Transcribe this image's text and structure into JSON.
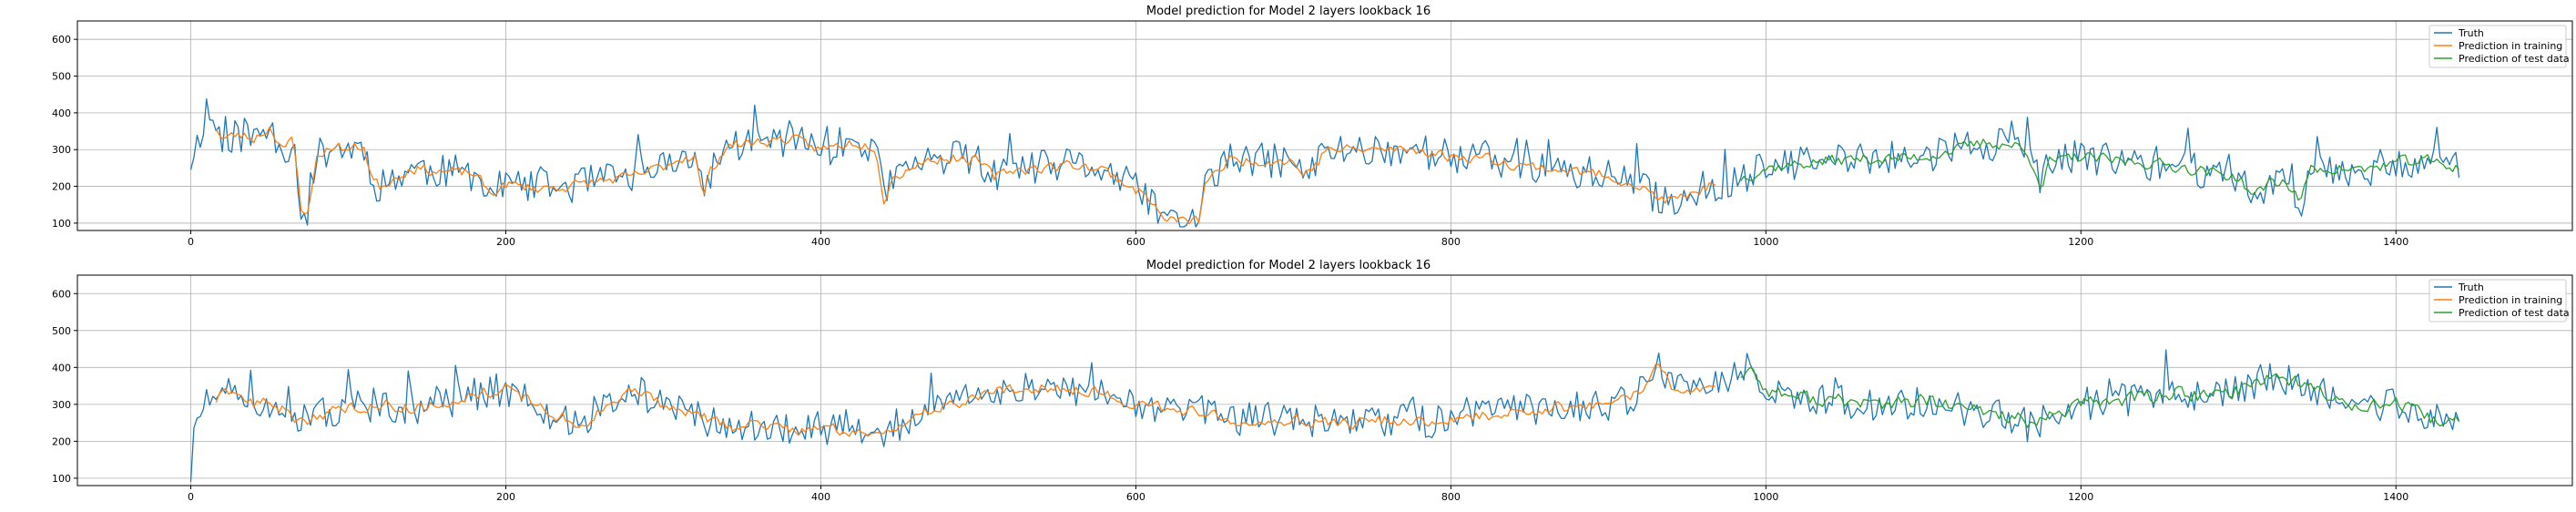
{
  "colors": {
    "truth": "#1f77b4",
    "train": "#ff7f0e",
    "test": "#2ca02c",
    "grid": "#b0b0b0"
  },
  "chart_data": [
    {
      "type": "line",
      "title": "Model prediction for Model 2 layers lookback 16",
      "xlabel": "",
      "ylabel": "",
      "xlim": [
        -72,
        1512
      ],
      "ylim": [
        80,
        650
      ],
      "x_ticks": [
        0,
        200,
        400,
        600,
        800,
        1000,
        1200,
        1400
      ],
      "y_ticks": [
        100,
        200,
        300,
        400,
        500,
        600
      ],
      "grid": true,
      "legend_position": "top-right",
      "series_profile": [
        [
          0,
          270
        ],
        [
          5,
          330
        ],
        [
          10,
          410
        ],
        [
          15,
          370
        ],
        [
          20,
          330
        ],
        [
          30,
          340
        ],
        [
          40,
          330
        ],
        [
          50,
          360
        ],
        [
          60,
          300
        ],
        [
          65,
          330
        ],
        [
          70,
          140
        ],
        [
          75,
          135
        ],
        [
          80,
          280
        ],
        [
          90,
          310
        ],
        [
          100,
          300
        ],
        [
          110,
          310
        ],
        [
          115,
          220
        ],
        [
          120,
          200
        ],
        [
          140,
          250
        ],
        [
          160,
          240
        ],
        [
          180,
          235
        ],
        [
          190,
          180
        ],
        [
          200,
          205
        ],
        [
          220,
          195
        ],
        [
          240,
          200
        ],
        [
          260,
          215
        ],
        [
          280,
          225
        ],
        [
          300,
          255
        ],
        [
          310,
          275
        ],
        [
          320,
          285
        ],
        [
          325,
          170
        ],
        [
          330,
          240
        ],
        [
          340,
          310
        ],
        [
          360,
          320
        ],
        [
          380,
          330
        ],
        [
          400,
          300
        ],
        [
          420,
          320
        ],
        [
          435,
          310
        ],
        [
          440,
          160
        ],
        [
          445,
          220
        ],
        [
          460,
          260
        ],
        [
          480,
          280
        ],
        [
          500,
          270
        ],
        [
          510,
          225
        ],
        [
          520,
          245
        ],
        [
          540,
          250
        ],
        [
          560,
          260
        ],
        [
          580,
          245
        ],
        [
          600,
          190
        ],
        [
          610,
          165
        ],
        [
          615,
          120
        ],
        [
          620,
          110
        ],
        [
          640,
          105
        ],
        [
          645,
          220
        ],
        [
          660,
          270
        ],
        [
          680,
          270
        ],
        [
          700,
          270
        ],
        [
          705,
          230
        ],
        [
          715,
          260
        ],
        [
          720,
          300
        ],
        [
          740,
          300
        ],
        [
          760,
          300
        ],
        [
          780,
          300
        ],
        [
          800,
          280
        ],
        [
          820,
          280
        ],
        [
          840,
          260
        ],
        [
          860,
          250
        ],
        [
          880,
          240
        ],
        [
          900,
          230
        ],
        [
          920,
          200
        ],
        [
          930,
          170
        ],
        [
          940,
          160
        ],
        [
          950,
          175
        ],
        [
          960,
          195
        ],
        [
          980,
          215
        ],
        [
          1000,
          250
        ],
        [
          1020,
          260
        ],
        [
          1040,
          270
        ],
        [
          1060,
          275
        ],
        [
          1080,
          275
        ],
        [
          1100,
          280
        ],
        [
          1120,
          300
        ],
        [
          1140,
          320
        ],
        [
          1160,
          310
        ],
        [
          1170,
          260
        ],
        [
          1175,
          200
        ],
        [
          1180,
          265
        ],
        [
          1200,
          280
        ],
        [
          1220,
          270
        ],
        [
          1240,
          265
        ],
        [
          1260,
          255
        ],
        [
          1280,
          240
        ],
        [
          1300,
          225
        ],
        [
          1310,
          170
        ],
        [
          1320,
          215
        ],
        [
          1330,
          210
        ],
        [
          1340,
          160
        ],
        [
          1345,
          245
        ],
        [
          1360,
          250
        ],
        [
          1380,
          245
        ],
        [
          1400,
          265
        ],
        [
          1420,
          270
        ],
        [
          1440,
          250
        ]
      ],
      "series": [
        {
          "name": "Truth",
          "x_range": [
            0,
            1440
          ],
          "noise": 48,
          "seed": 11
        },
        {
          "name": "Prediction in training",
          "x_range": [
            16,
            968
          ],
          "noise": 20,
          "seed": 23
        },
        {
          "name": "Prediction of test data",
          "x_range": [
            984,
            1440
          ],
          "noise": 22,
          "seed": 37
        }
      ],
      "legend": [
        "Truth",
        "Prediction in training",
        "Prediction of test data"
      ]
    },
    {
      "type": "line",
      "title": "Model prediction for Model 2 layers lookback 16",
      "xlabel": "",
      "ylabel": "",
      "xlim": [
        -72,
        1512
      ],
      "ylim": [
        80,
        650
      ],
      "x_ticks": [
        0,
        200,
        400,
        600,
        800,
        1000,
        1200,
        1400
      ],
      "y_ticks": [
        100,
        200,
        300,
        400,
        500,
        600
      ],
      "grid": true,
      "legend_position": "top-right",
      "series_profile": [
        [
          0,
          105
        ],
        [
          3,
          270
        ],
        [
          10,
          300
        ],
        [
          20,
          320
        ],
        [
          30,
          330
        ],
        [
          40,
          300
        ],
        [
          50,
          310
        ],
        [
          60,
          280
        ],
        [
          70,
          250
        ],
        [
          80,
          270
        ],
        [
          100,
          290
        ],
        [
          120,
          300
        ],
        [
          140,
          290
        ],
        [
          160,
          300
        ],
        [
          180,
          330
        ],
        [
          200,
          340
        ],
        [
          220,
          300
        ],
        [
          230,
          270
        ],
        [
          240,
          260
        ],
        [
          250,
          240
        ],
        [
          260,
          280
        ],
        [
          280,
          340
        ],
        [
          300,
          300
        ],
        [
          320,
          270
        ],
        [
          340,
          240
        ],
        [
          360,
          250
        ],
        [
          380,
          230
        ],
        [
          400,
          240
        ],
        [
          420,
          220
        ],
        [
          440,
          230
        ],
        [
          460,
          260
        ],
        [
          480,
          300
        ],
        [
          500,
          320
        ],
        [
          520,
          340
        ],
        [
          540,
          350
        ],
        [
          560,
          340
        ],
        [
          580,
          330
        ],
        [
          600,
          300
        ],
        [
          620,
          290
        ],
        [
          640,
          280
        ],
        [
          660,
          260
        ],
        [
          680,
          260
        ],
        [
          700,
          260
        ],
        [
          720,
          250
        ],
        [
          740,
          250
        ],
        [
          760,
          260
        ],
        [
          780,
          250
        ],
        [
          800,
          260
        ],
        [
          820,
          270
        ],
        [
          840,
          280
        ],
        [
          860,
          290
        ],
        [
          880,
          290
        ],
        [
          900,
          300
        ],
        [
          920,
          330
        ],
        [
          930,
          420
        ],
        [
          940,
          350
        ],
        [
          960,
          340
        ],
        [
          980,
          370
        ],
        [
          990,
          400
        ],
        [
          1000,
          340
        ],
        [
          1020,
          320
        ],
        [
          1040,
          310
        ],
        [
          1060,
          305
        ],
        [
          1080,
          300
        ],
        [
          1100,
          310
        ],
        [
          1120,
          290
        ],
        [
          1140,
          280
        ],
        [
          1160,
          265
        ],
        [
          1170,
          230
        ],
        [
          1180,
          270
        ],
        [
          1200,
          300
        ],
        [
          1220,
          310
        ],
        [
          1240,
          320
        ],
        [
          1260,
          330
        ],
        [
          1280,
          320
        ],
        [
          1300,
          340
        ],
        [
          1310,
          360
        ],
        [
          1320,
          380
        ],
        [
          1340,
          360
        ],
        [
          1360,
          310
        ],
        [
          1380,
          300
        ],
        [
          1400,
          300
        ],
        [
          1420,
          260
        ],
        [
          1440,
          250
        ]
      ],
      "series": [
        {
          "name": "Truth",
          "x_range": [
            0,
            1440
          ],
          "noise": 46,
          "seed": 51
        },
        {
          "name": "Prediction in training",
          "x_range": [
            16,
            968
          ],
          "noise": 22,
          "seed": 63
        },
        {
          "name": "Prediction of test data",
          "x_range": [
            984,
            1440
          ],
          "noise": 28,
          "seed": 77
        }
      ],
      "legend": [
        "Truth",
        "Prediction in training",
        "Prediction of test data"
      ]
    }
  ]
}
